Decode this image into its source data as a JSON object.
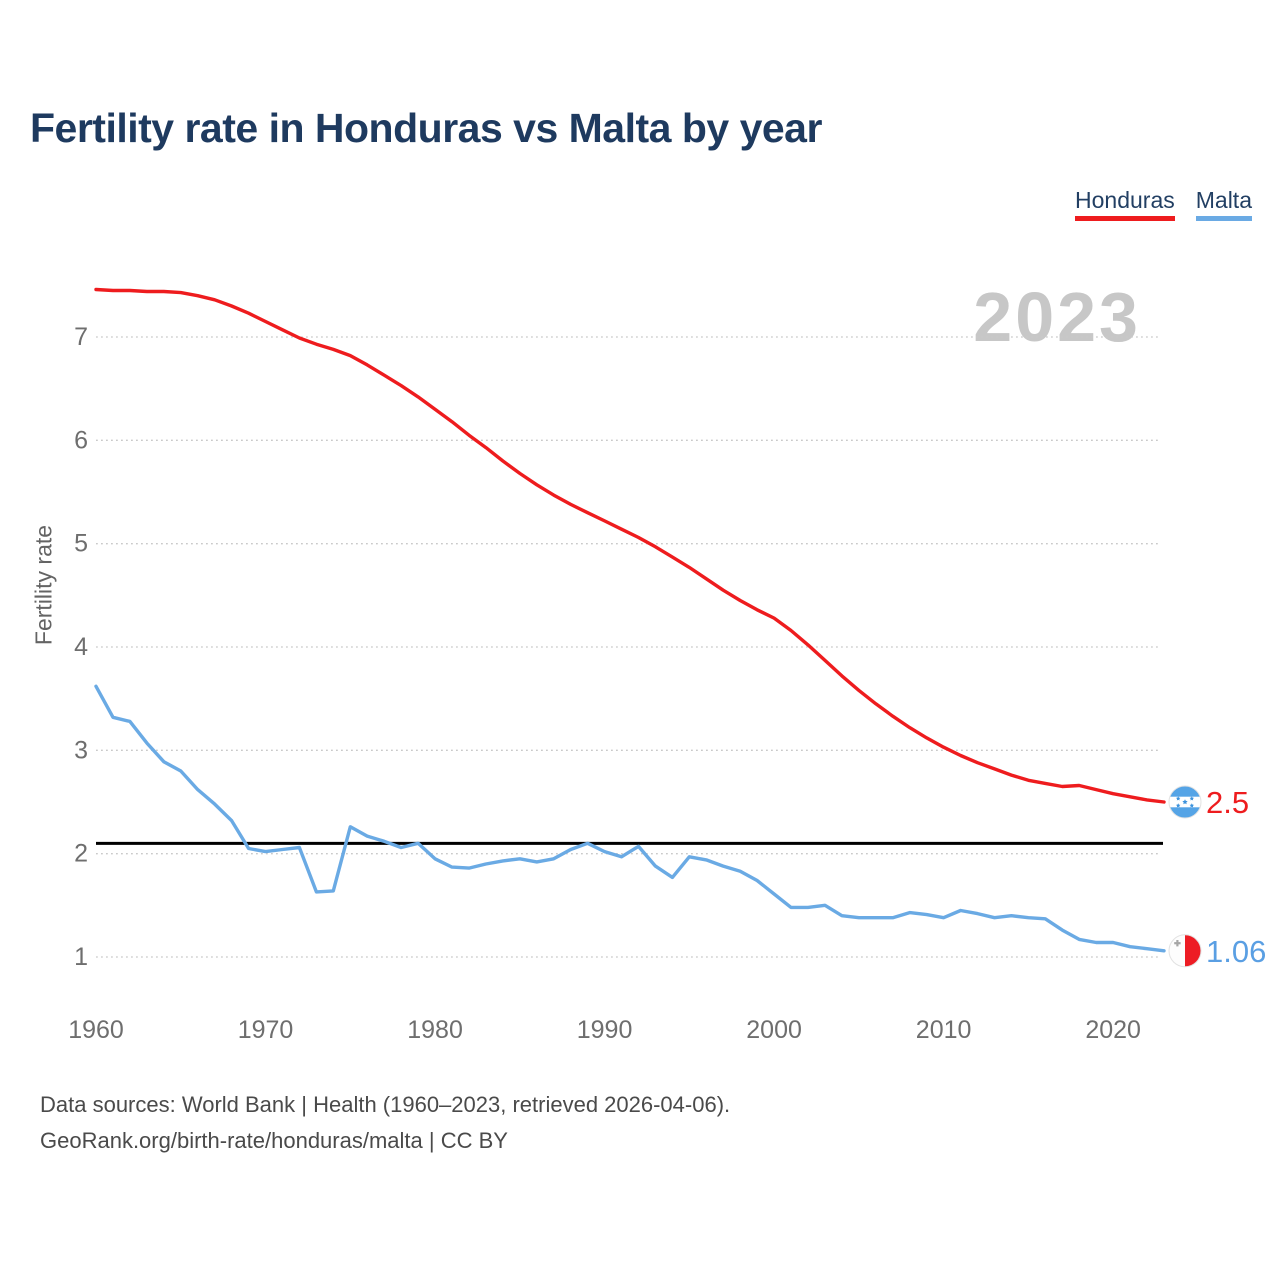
{
  "title": "Fertility rate in Honduras vs Malta by year",
  "watermark": "2023",
  "legend": {
    "items": [
      {
        "label": "Honduras",
        "color": "#ee1c1e"
      },
      {
        "label": "Malta",
        "color": "#6aaae4"
      }
    ]
  },
  "footer": {
    "line1": "Data sources: World Bank | Health (1960–2023, retrieved 2026-04-06).",
    "line2": "GeoRank.org/birth-rate/honduras/malta | CC BY"
  },
  "colors": {
    "honduras": "#ee1c1e",
    "malta": "#6aaae4",
    "honduras_label": "#ee1c1e",
    "malta_label": "#5a9fe3",
    "honduras_flag_stripe": "#55a4e6",
    "honduras_flag_star": "#3d93dd",
    "malta_flag_red": "#ed1c24",
    "malta_flag_cross": "#a6a6a6",
    "flag_edge": "#e2e2e2",
    "reference": "#000000",
    "gridline": "#c9c9c9",
    "axis_text": "#6e6e6e",
    "title_text": "#1e3a5f",
    "watermark_text": "#c7c7c7"
  },
  "chart_data": {
    "type": "line",
    "title": "Fertility rate in Honduras vs Malta by year",
    "xlabel": "",
    "ylabel": "Fertility rate",
    "ylim": [
      1,
      7
    ],
    "y_ticks": [
      1,
      2,
      3,
      4,
      5,
      6,
      7
    ],
    "x_ticks": [
      1960,
      1970,
      1980,
      1990,
      2000,
      2010,
      2020
    ],
    "grid": true,
    "legend_position": "top-right",
    "watermark_year": "2023",
    "reference_line": {
      "value": 2.1,
      "color": "#000000"
    },
    "x": [
      1960,
      1961,
      1962,
      1963,
      1964,
      1965,
      1966,
      1967,
      1968,
      1969,
      1970,
      1971,
      1972,
      1973,
      1974,
      1975,
      1976,
      1977,
      1978,
      1979,
      1980,
      1981,
      1982,
      1983,
      1984,
      1985,
      1986,
      1987,
      1988,
      1989,
      1990,
      1991,
      1992,
      1993,
      1994,
      1995,
      1996,
      1997,
      1998,
      1999,
      2000,
      2001,
      2002,
      2003,
      2004,
      2005,
      2006,
      2007,
      2008,
      2009,
      2010,
      2011,
      2012,
      2013,
      2014,
      2015,
      2016,
      2017,
      2018,
      2019,
      2020,
      2021,
      2022,
      2023
    ],
    "series": [
      {
        "name": "Honduras",
        "color": "#ee1c1e",
        "values": [
          7.46,
          7.45,
          7.45,
          7.44,
          7.44,
          7.43,
          7.4,
          7.36,
          7.3,
          7.23,
          7.15,
          7.07,
          6.99,
          6.93,
          6.88,
          6.82,
          6.73,
          6.63,
          6.53,
          6.42,
          6.3,
          6.18,
          6.05,
          5.93,
          5.8,
          5.68,
          5.57,
          5.47,
          5.38,
          5.3,
          5.22,
          5.14,
          5.06,
          4.97,
          4.87,
          4.77,
          4.66,
          4.55,
          4.45,
          4.36,
          4.28,
          4.16,
          4.02,
          3.87,
          3.72,
          3.58,
          3.45,
          3.33,
          3.22,
          3.12,
          3.03,
          2.95,
          2.88,
          2.82,
          2.76,
          2.71,
          2.68,
          2.65,
          2.66,
          2.62,
          2.58,
          2.55,
          2.52,
          2.5
        ]
      },
      {
        "name": "Malta",
        "color": "#6aaae4",
        "values": [
          3.62,
          3.32,
          3.28,
          3.07,
          2.89,
          2.8,
          2.62,
          2.48,
          2.32,
          2.05,
          2.02,
          2.04,
          2.06,
          1.63,
          1.64,
          2.26,
          2.17,
          2.12,
          2.06,
          2.1,
          1.95,
          1.87,
          1.86,
          1.9,
          1.93,
          1.95,
          1.92,
          1.95,
          2.04,
          2.1,
          2.02,
          1.97,
          2.07,
          1.88,
          1.77,
          1.97,
          1.94,
          1.88,
          1.83,
          1.74,
          1.61,
          1.48,
          1.48,
          1.5,
          1.4,
          1.38,
          1.38,
          1.38,
          1.43,
          1.41,
          1.38,
          1.45,
          1.42,
          1.38,
          1.4,
          1.38,
          1.37,
          1.26,
          1.17,
          1.14,
          1.14,
          1.1,
          1.08,
          1.06
        ]
      }
    ],
    "end_labels": [
      {
        "series": "Honduras",
        "text": "2.5"
      },
      {
        "series": "Malta",
        "text": "1.06"
      }
    ]
  }
}
